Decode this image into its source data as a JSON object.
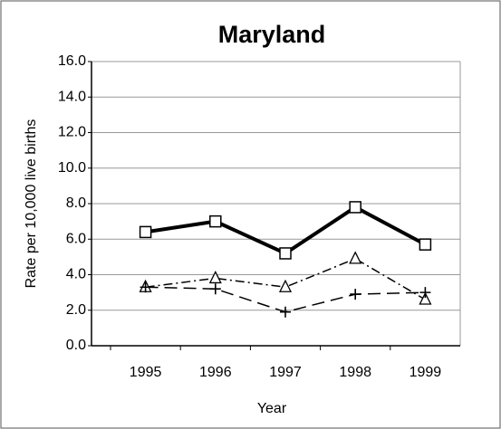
{
  "chart_data": {
    "type": "line",
    "title": "Maryland",
    "x_label": "Year",
    "y_label": "Rate per 10,000 live births",
    "categories": [
      "1995",
      "1996",
      "1997",
      "1998",
      "1999"
    ],
    "series": [
      {
        "color": "#000000",
        "marker": "square",
        "line_style": "solid",
        "line_width": 4,
        "values": [
          6.4,
          7.0,
          5.2,
          7.8,
          5.7
        ]
      },
      {
        "color": "#000000",
        "marker": "triangle",
        "line_style": "dashdot",
        "line_width": 1.5,
        "values": [
          3.3,
          3.8,
          3.3,
          4.9,
          2.6
        ]
      },
      {
        "color": "#000000",
        "marker": "plus",
        "line_style": "dashed",
        "line_width": 1.5,
        "values": [
          3.3,
          3.2,
          1.9,
          2.9,
          3.0
        ]
      }
    ],
    "ylim": [
      0,
      16
    ],
    "yticks": [
      {
        "value": 0,
        "label": "0.0"
      },
      {
        "value": 2,
        "label": "2.0"
      },
      {
        "value": 4,
        "label": "4.0"
      },
      {
        "value": 6,
        "label": "6.0"
      },
      {
        "value": 8,
        "label": "8.0"
      },
      {
        "value": 10,
        "label": "10.0"
      },
      {
        "value": 12,
        "label": "12.0"
      },
      {
        "value": 14,
        "label": "14.0"
      },
      {
        "value": 16,
        "label": "16.0"
      }
    ],
    "grid": true
  }
}
